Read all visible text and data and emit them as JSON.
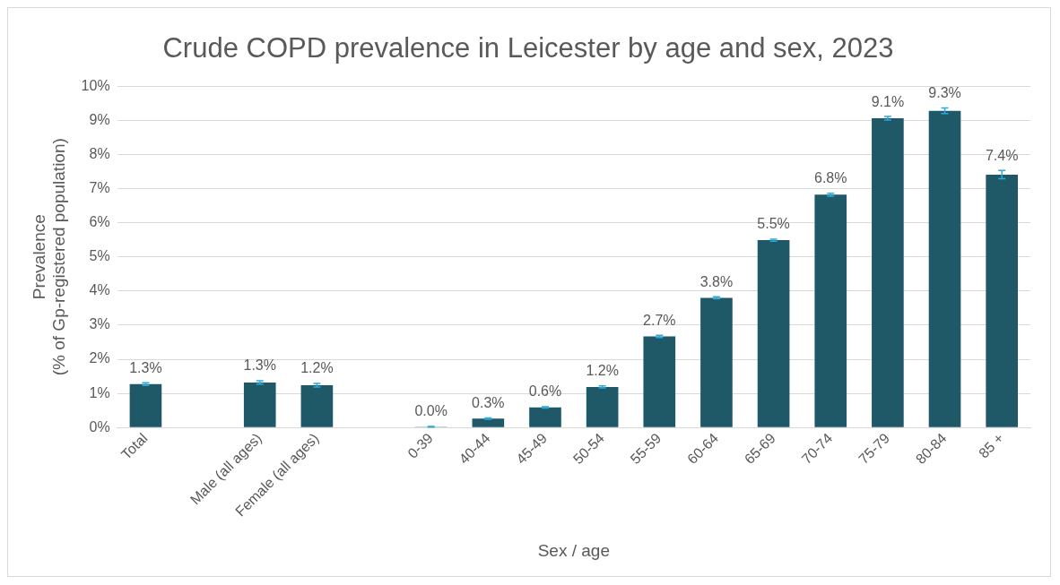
{
  "chart_data": {
    "type": "bar",
    "title": "Crude COPD prevalence in Leicester by age and sex, 2023",
    "xlabel": "Sex / age",
    "ylabel": "Prevalence\n(% of Gp-registered population)",
    "categories": [
      "Total",
      null,
      "Male (all ages)",
      "Female (all ages)",
      null,
      "0-39",
      "40-44",
      "45-49",
      "50-54",
      "55-59",
      "60-64",
      "65-69",
      "70-74",
      "75-79",
      "80-84",
      "85 +"
    ],
    "series": [
      {
        "color": "#1f5866",
        "values": [
          1.27,
          null,
          1.32,
          1.24,
          null,
          0.02,
          0.26,
          0.59,
          1.19,
          2.67,
          3.8,
          5.49,
          6.82,
          9.06,
          9.28,
          7.41
        ],
        "errors": [
          0.04,
          null,
          0.05,
          0.05,
          null,
          0.01,
          0.02,
          0.02,
          0.03,
          0.03,
          0.03,
          0.03,
          0.04,
          0.05,
          0.08,
          0.12
        ],
        "value_labels": [
          "1.3%",
          null,
          "1.3%",
          "1.2%",
          null,
          "0.0%",
          "0.3%",
          "0.6%",
          "1.2%",
          "2.7%",
          "3.8%",
          "5.5%",
          "6.8%",
          "9.1%",
          "9.3%",
          "7.4%"
        ]
      }
    ],
    "ylim": [
      0,
      10
    ],
    "yticks": [
      {
        "value": 0,
        "label": "0%"
      },
      {
        "value": 1,
        "label": "1%"
      },
      {
        "value": 2,
        "label": "2%"
      },
      {
        "value": 3,
        "label": "3%"
      },
      {
        "value": 4,
        "label": "4%"
      },
      {
        "value": 5,
        "label": "5%"
      },
      {
        "value": 6,
        "label": "6%"
      },
      {
        "value": 7,
        "label": "7%"
      },
      {
        "value": 8,
        "label": "8%"
      },
      {
        "value": 9,
        "label": "9%"
      },
      {
        "value": 10,
        "label": "10%"
      }
    ],
    "grid": "y",
    "legend": false
  }
}
